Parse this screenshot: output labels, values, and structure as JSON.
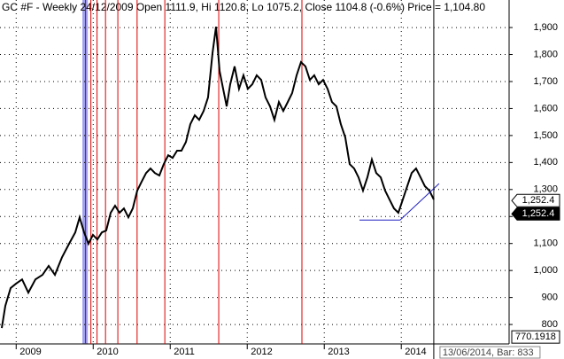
{
  "chart_data": {
    "type": "line",
    "title": "GC #F - Weekly 24/12/2009 Open 1111.9, Hi 1120.8, Lo 1075.2, Close 1104.8 (-0.6%) Price = 1,104.80",
    "series": [
      {
        "color": "#000000",
        "x": [
          2008.813,
          2008.859,
          2008.928,
          2008.997,
          2009.077,
          2009.158,
          2009.25,
          2009.342,
          2009.422,
          2009.503,
          2009.595,
          2009.687,
          2009.767,
          2009.824,
          2009.882,
          2009.939,
          2009.997,
          2010.054,
          2010.112,
          2010.169,
          2010.227,
          2010.284,
          2010.342,
          2010.399,
          2010.457,
          2010.514,
          2010.572,
          2010.629,
          2010.687,
          2010.744,
          2010.801,
          2010.859,
          2010.916,
          2010.974,
          2011.031,
          2011.089,
          2011.146,
          2011.204,
          2011.261,
          2011.319,
          2011.376,
          2011.434,
          2011.491,
          2011.549,
          2011.595,
          2011.641,
          2011.687,
          2011.733,
          2011.779,
          2011.836,
          2011.893,
          2011.951,
          2012.008,
          2012.066,
          2012.123,
          2012.181,
          2012.238,
          2012.296,
          2012.353,
          2012.411,
          2012.468,
          2012.526,
          2012.583,
          2012.641,
          2012.698,
          2012.756,
          2012.813,
          2012.87,
          2012.928,
          2012.985,
          2013.043,
          2013.1,
          2013.158,
          2013.215,
          2013.273,
          2013.33,
          2013.388,
          2013.445,
          2013.503,
          2013.56,
          2013.618,
          2013.675,
          2013.733,
          2013.79,
          2013.847,
          2013.905,
          2013.962,
          2014.02,
          2014.077,
          2014.135,
          2014.192,
          2014.25,
          2014.307,
          2014.365,
          2014.422
        ],
        "values": [
          787,
          869,
          935,
          951,
          967,
          918,
          967,
          984,
          1017,
          984,
          1049,
          1099,
          1141,
          1197,
          1141,
          1099,
          1132,
          1115,
          1141,
          1148,
          1214,
          1240,
          1214,
          1230,
          1197,
          1230,
          1296,
          1329,
          1361,
          1378,
          1361,
          1352,
          1394,
          1427,
          1417,
          1444,
          1444,
          1476,
          1542,
          1575,
          1558,
          1591,
          1641,
          1805,
          1903,
          1739,
          1673,
          1608,
          1690,
          1756,
          1673,
          1723,
          1673,
          1690,
          1723,
          1706,
          1641,
          1608,
          1558,
          1624,
          1591,
          1624,
          1657,
          1723,
          1772,
          1756,
          1706,
          1723,
          1690,
          1706,
          1673,
          1624,
          1608,
          1542,
          1493,
          1394,
          1378,
          1345,
          1296,
          1345,
          1411,
          1361,
          1345,
          1296,
          1263,
          1230,
          1214,
          1263,
          1312,
          1361,
          1378,
          1345,
          1312,
          1296,
          1263
        ]
      }
    ],
    "xlim": [
      2008.79,
      2015.4
    ],
    "xticks": [
      2009,
      2010,
      2011,
      2012,
      2013,
      2014
    ],
    "ylim": [
      728,
      2002
    ],
    "yticks": [
      800,
      900,
      {
        "value": 1000,
        "label": "1,000"
      },
      {
        "value": 1100,
        "label": "1,100"
      },
      {
        "value": 1200,
        "label": "1,200"
      },
      {
        "value": 1300,
        "label": "1,300"
      },
      {
        "value": 1400,
        "label": "1,400"
      },
      {
        "value": 1500,
        "label": "1,500"
      },
      {
        "value": 1600,
        "label": "1,600"
      },
      {
        "value": 1700,
        "label": "1,700"
      },
      {
        "value": 1800,
        "label": "1,800"
      },
      {
        "value": 1900,
        "label": "1,900"
      }
    ],
    "grid": true,
    "events": {
      "color": "#dd0000",
      "x": [
        2009.9,
        2009.97,
        2010.05,
        2010.16,
        2010.32,
        2010.57,
        2010.93,
        2011.63,
        2012.71
      ]
    },
    "highlight": {
      "color": "#a0a0f0",
      "x": [
        2009.86,
        2009.93
      ]
    },
    "trendlines": {
      "color": "#2020c0",
      "lines": [
        {
          "x": [
            2013.457,
            2013.985
          ],
          "y": [
            1187,
            1187
          ]
        },
        {
          "x": [
            2013.985,
            2014.491
          ],
          "y": [
            1187,
            1322
          ]
        }
      ]
    },
    "price_labels": [
      {
        "value": 1252.4,
        "label": "1,252.4",
        "style": "light"
      },
      {
        "value": 1252.4,
        "label": "1,252.4",
        "style": "dark"
      }
    ],
    "cursor": {
      "x": 2014.422,
      "y": 770.1918,
      "date_label": "13/06/2014, Bar: 833"
    }
  }
}
